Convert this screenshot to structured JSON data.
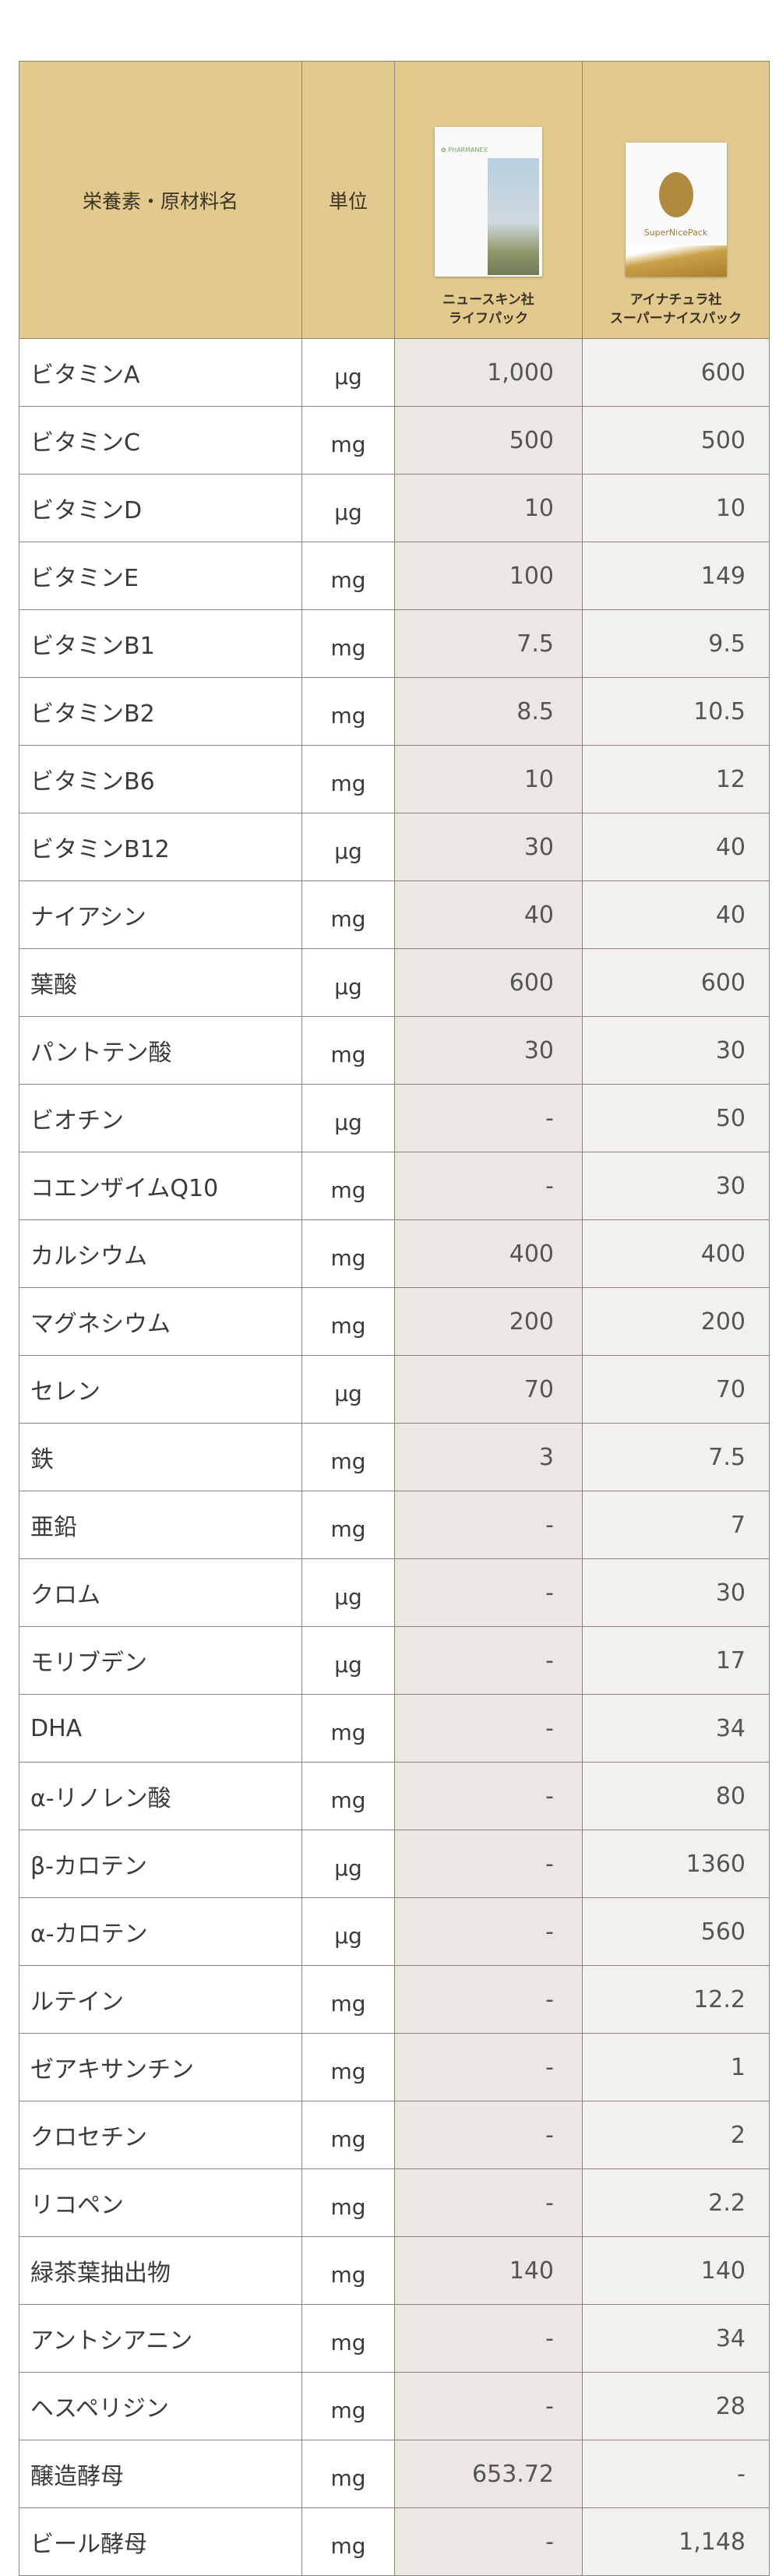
{
  "header": {
    "col_name": "栄養素・原材料名",
    "col_unit": "単位",
    "product1": {
      "company": "ニュースキン社",
      "name": "ライフパック",
      "image_brand": "PHARMANEX"
    },
    "product2": {
      "company": "アイナチュラ社",
      "name": "スーパーナイスパック",
      "image_brand": "SuperNicePack"
    }
  },
  "colors": {
    "header_bg": "#e2c98d",
    "product1_bg": "#ebe7e3",
    "product2_bg": "#f3f1ee"
  },
  "rows": [
    {
      "name": "ビタミンA",
      "unit": "μg",
      "p1": "1,000",
      "p2": "600"
    },
    {
      "name": "ビタミンC",
      "unit": "mg",
      "p1": "500",
      "p2": "500"
    },
    {
      "name": "ビタミンD",
      "unit": "μg",
      "p1": "10",
      "p2": "10"
    },
    {
      "name": "ビタミンE",
      "unit": "mg",
      "p1": "100",
      "p2": "149"
    },
    {
      "name": "ビタミンB1",
      "unit": "mg",
      "p1": "7.5",
      "p2": "9.5"
    },
    {
      "name": "ビタミンB2",
      "unit": "mg",
      "p1": "8.5",
      "p2": "10.5"
    },
    {
      "name": "ビタミンB6",
      "unit": "mg",
      "p1": "10",
      "p2": "12"
    },
    {
      "name": "ビタミンB12",
      "unit": "μg",
      "p1": "30",
      "p2": "40"
    },
    {
      "name": "ナイアシン",
      "unit": "mg",
      "p1": "40",
      "p2": "40"
    },
    {
      "name": "葉酸",
      "unit": "μg",
      "p1": "600",
      "p2": "600"
    },
    {
      "name": "パントテン酸",
      "unit": "mg",
      "p1": "30",
      "p2": "30"
    },
    {
      "name": "ビオチン",
      "unit": "μg",
      "p1": "-",
      "p2": "50"
    },
    {
      "name": "コエンザイムQ10",
      "unit": "mg",
      "p1": "-",
      "p2": "30"
    },
    {
      "name": "カルシウム",
      "unit": "mg",
      "p1": "400",
      "p2": "400"
    },
    {
      "name": "マグネシウム",
      "unit": "mg",
      "p1": "200",
      "p2": "200"
    },
    {
      "name": "セレン",
      "unit": "μg",
      "p1": "70",
      "p2": "70"
    },
    {
      "name": "鉄",
      "unit": "mg",
      "p1": "3",
      "p2": "7.5"
    },
    {
      "name": "亜鉛",
      "unit": "mg",
      "p1": "-",
      "p2": "7"
    },
    {
      "name": "クロム",
      "unit": "μg",
      "p1": "-",
      "p2": "30"
    },
    {
      "name": "モリブデン",
      "unit": "μg",
      "p1": "-",
      "p2": "17"
    },
    {
      "name": "DHA",
      "unit": "mg",
      "p1": "-",
      "p2": "34"
    },
    {
      "name": "α-リノレン酸",
      "unit": "mg",
      "p1": "-",
      "p2": "80"
    },
    {
      "name": "β-カロテン",
      "unit": "μg",
      "p1": "-",
      "p2": "1360"
    },
    {
      "name": "α-カロテン",
      "unit": "μg",
      "p1": "-",
      "p2": "560"
    },
    {
      "name": "ルテイン",
      "unit": "mg",
      "p1": "-",
      "p2": "12.2"
    },
    {
      "name": "ゼアキサンチン",
      "unit": "mg",
      "p1": "-",
      "p2": "1"
    },
    {
      "name": "クロセチン",
      "unit": "mg",
      "p1": "-",
      "p2": "2"
    },
    {
      "name": "リコペン",
      "unit": "mg",
      "p1": "-",
      "p2": "2.2"
    },
    {
      "name": "緑茶葉抽出物",
      "unit": "mg",
      "p1": "140",
      "p2": "140"
    },
    {
      "name": "アントシアニン",
      "unit": "mg",
      "p1": "-",
      "p2": "34"
    },
    {
      "name": "ヘスペリジン",
      "unit": "mg",
      "p1": "-",
      "p2": "28"
    },
    {
      "name": "醸造酵母",
      "unit": "mg",
      "p1": "653.72",
      "p2": "-"
    },
    {
      "name": "ビール酵母",
      "unit": "mg",
      "p1": "-",
      "p2": "1,148"
    }
  ]
}
